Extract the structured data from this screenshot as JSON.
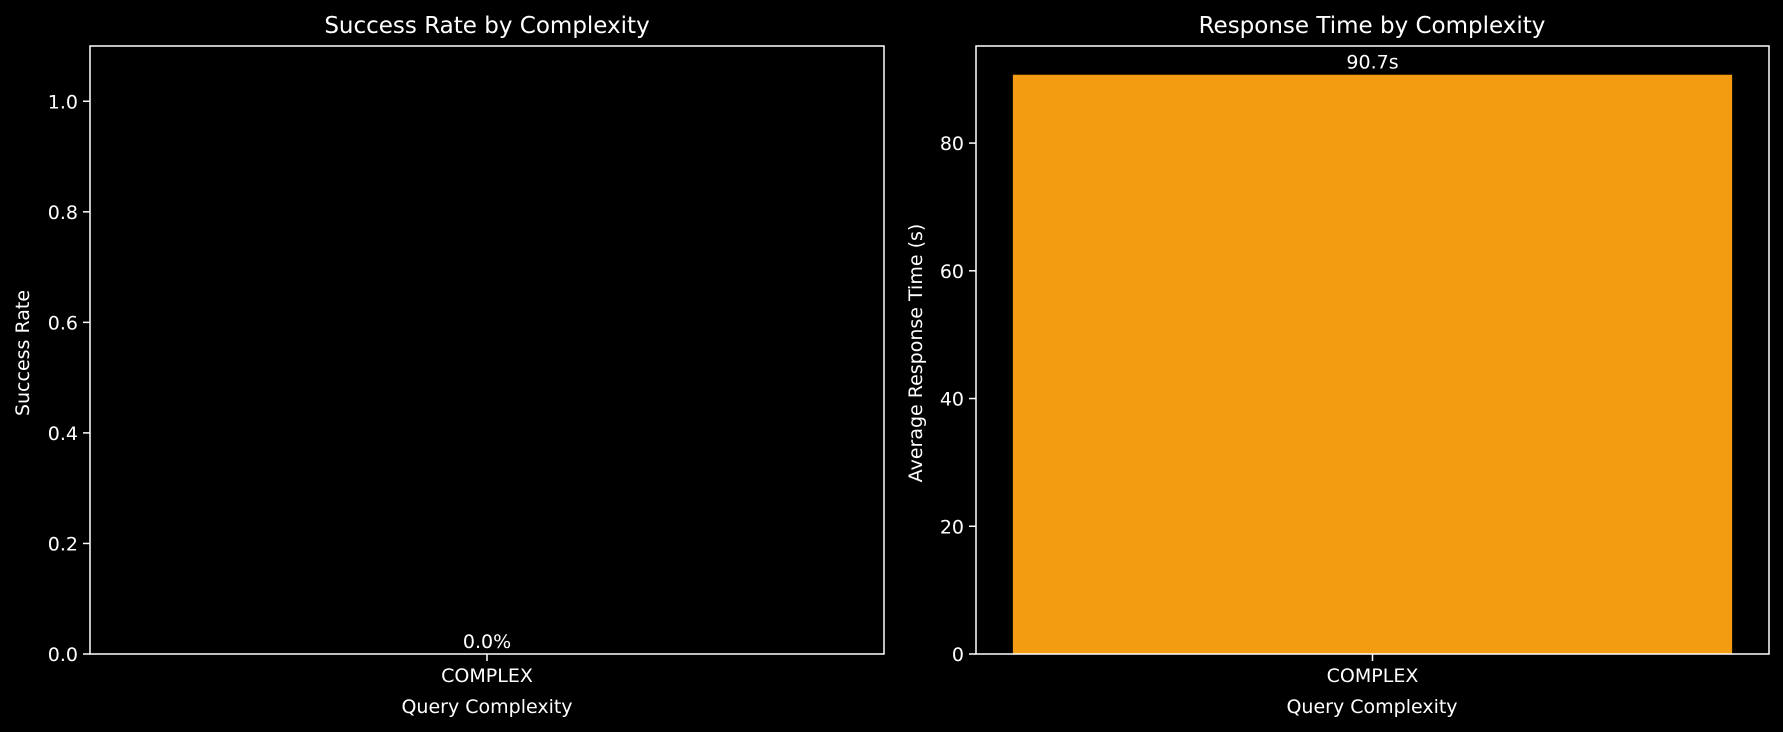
{
  "colors": {
    "background": "#000000",
    "foreground": "#ffffff",
    "bar": "#f39c12"
  },
  "chart_data": [
    {
      "type": "bar",
      "title": "Success Rate by Complexity",
      "xlabel": "Query Complexity",
      "ylabel": "Success Rate",
      "categories": [
        "COMPLEX"
      ],
      "values": [
        0.0
      ],
      "data_labels": [
        "0.0%"
      ],
      "ylim": [
        0,
        1.1
      ],
      "yticks": [
        0.0,
        0.2,
        0.4,
        0.6,
        0.8,
        1.0
      ],
      "ytick_labels": [
        "0.0",
        "0.2",
        "0.4",
        "0.6",
        "0.8",
        "1.0"
      ],
      "grid": false,
      "legend": "none"
    },
    {
      "type": "bar",
      "title": "Response Time by Complexity",
      "xlabel": "Query Complexity",
      "ylabel": "Average Response Time (s)",
      "categories": [
        "COMPLEX"
      ],
      "values": [
        90.7
      ],
      "data_labels": [
        "90.7s"
      ],
      "ylim": [
        0,
        95.2
      ],
      "yticks": [
        0,
        20,
        40,
        60,
        80
      ],
      "ytick_labels": [
        "0",
        "20",
        "40",
        "60",
        "80"
      ],
      "grid": false,
      "legend": "none"
    }
  ]
}
